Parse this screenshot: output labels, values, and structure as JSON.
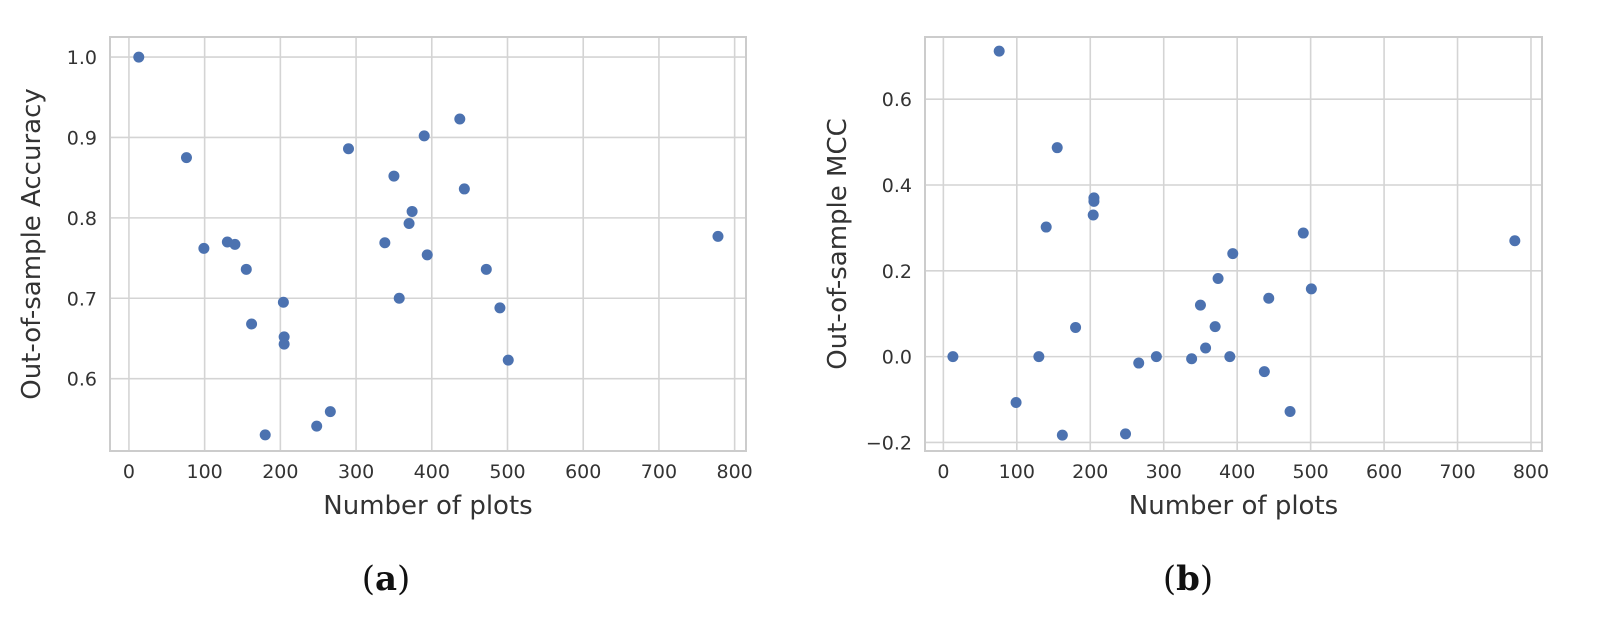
{
  "chart_data": [
    {
      "type": "scatter",
      "panel_label": "a",
      "xlabel": "Number of plots",
      "ylabel": "Out-of-sample Accuracy",
      "xlim": [
        -25,
        815
      ],
      "ylim": [
        0.51,
        1.025
      ],
      "xticks": [
        0,
        100,
        200,
        300,
        400,
        500,
        600,
        700,
        800
      ],
      "yticks": [
        0.6,
        0.7,
        0.8,
        0.9,
        1.0
      ],
      "ytick_labels": [
        "0.6",
        "0.7",
        "0.8",
        "0.9",
        "1.0"
      ],
      "grid": true,
      "point_color": "#4c72b0",
      "x": [
        13,
        76,
        99,
        130,
        140,
        155,
        162,
        180,
        204,
        205,
        205,
        248,
        266,
        290,
        338,
        350,
        357,
        370,
        374,
        390,
        394,
        437,
        443,
        472,
        490,
        501,
        778
      ],
      "y": [
        1.0,
        0.875,
        0.762,
        0.77,
        0.767,
        0.736,
        0.668,
        0.53,
        0.695,
        0.652,
        0.643,
        0.541,
        0.559,
        0.886,
        0.769,
        0.852,
        0.7,
        0.793,
        0.808,
        0.902,
        0.754,
        0.923,
        0.836,
        0.736,
        0.688,
        0.623,
        0.777
      ]
    },
    {
      "type": "scatter",
      "panel_label": "b",
      "xlabel": "Number of plots",
      "ylabel": "Out-of-sample MCC",
      "xlim": [
        -25,
        815
      ],
      "ylim": [
        -0.22,
        0.745
      ],
      "xticks": [
        0,
        100,
        200,
        300,
        400,
        500,
        600,
        700,
        800
      ],
      "yticks": [
        -0.2,
        0.0,
        0.2,
        0.4,
        0.6
      ],
      "ytick_labels": [
        "−0.2",
        "0.0",
        "0.2",
        "0.4",
        "0.6"
      ],
      "grid": true,
      "point_color": "#4c72b0",
      "x": [
        13,
        76,
        99,
        130,
        140,
        155,
        162,
        180,
        204,
        205,
        205,
        248,
        266,
        290,
        338,
        350,
        357,
        370,
        374,
        390,
        394,
        437,
        443,
        472,
        490,
        501,
        778
      ],
      "y": [
        0.0,
        0.712,
        -0.107,
        0.0,
        0.302,
        0.487,
        -0.183,
        0.068,
        0.33,
        0.362,
        0.37,
        -0.18,
        -0.015,
        0.0,
        -0.005,
        0.12,
        0.02,
        0.07,
        0.182,
        0.0,
        0.24,
        -0.035,
        0.136,
        -0.128,
        0.288,
        0.158,
        0.27
      ]
    }
  ]
}
